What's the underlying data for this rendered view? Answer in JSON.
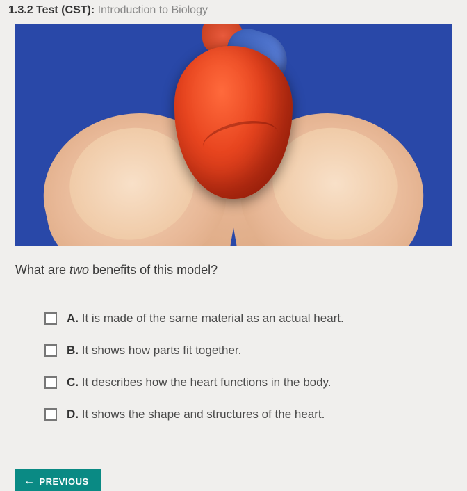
{
  "header": {
    "section_number": "1.3.2",
    "test_label": "Test (CST):",
    "test_title": "Introduction to Biology"
  },
  "image": {
    "description": "Hands holding anatomical heart model",
    "background_color": "#2948a8",
    "heart_color": "#e8451f",
    "vessel_color": "#3a5fb8",
    "skin_color": "#f0cba8"
  },
  "question": {
    "prefix": "What are ",
    "emphasis": "two",
    "suffix": " benefits of this model?"
  },
  "options": [
    {
      "letter": "A.",
      "text": "It is made of the same material as an actual heart.",
      "checked": false
    },
    {
      "letter": "B.",
      "text": "It shows how parts fit together.",
      "checked": false
    },
    {
      "letter": "C.",
      "text": "It describes how the heart functions in the body.",
      "checked": false
    },
    {
      "letter": "D.",
      "text": "It shows the shape and structures of the heart.",
      "checked": false
    }
  ],
  "footer": {
    "previous_label": "PREVIOUS"
  }
}
